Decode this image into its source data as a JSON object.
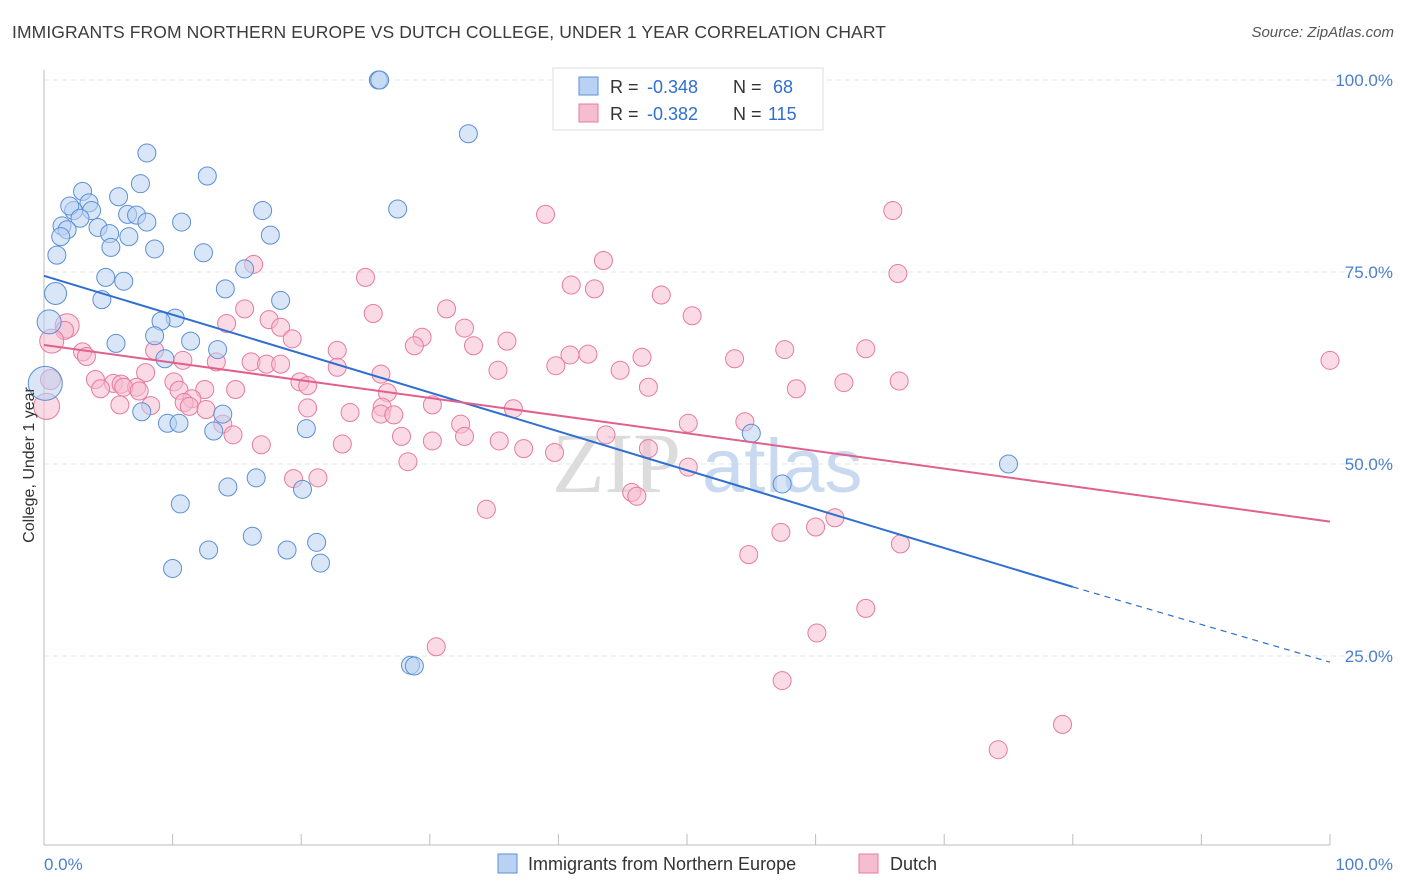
{
  "title": "IMMIGRANTS FROM NORTHERN EUROPE VS DUTCH COLLEGE, UNDER 1 YEAR CORRELATION CHART",
  "source": "Source: ZipAtlas.com",
  "watermark": {
    "zip": "ZIP",
    "atlas": "atlas"
  },
  "colors": {
    "blue": "#5b8fd6",
    "blue_fill": "#b9d1f2",
    "blue_line": "#2f6fd0",
    "pink": "#e87aa0",
    "pink_fill": "#f6bcd0",
    "pink_line": "#e0608e",
    "axis_label": "#4a7fce",
    "grid": "#e6e6e6"
  },
  "legend_top": {
    "blue": {
      "r_label": "R =",
      "r_value": "-0.348",
      "n_label": "N =",
      "n_value": "68"
    },
    "pink": {
      "r_label": "R =",
      "r_value": "-0.382",
      "n_label": "N =",
      "n_value": "115"
    }
  },
  "chart_data": {
    "type": "scatter",
    "title": "IMMIGRANTS FROM NORTHERN EUROPE VS DUTCH COLLEGE, UNDER 1 YEAR CORRELATION CHART",
    "xlabel": "",
    "ylabel": "College, Under 1 year",
    "xlim": [
      0,
      100
    ],
    "ylim": [
      3,
      105
    ],
    "x_tick_labels": [
      "0.0%",
      "100.0%"
    ],
    "y_ticks": [
      25,
      50,
      75,
      100
    ],
    "y_tick_labels": [
      "25.0%",
      "50.0%",
      "75.0%",
      "100.0%"
    ],
    "grid": true,
    "legend_position": "top-center",
    "series": [
      {
        "name": "Immigrants from Northern Europe",
        "color": "#5b8fd6",
        "trend": {
          "x0": 0,
          "y0": 74.5,
          "x1": 80,
          "y1": 34,
          "dashed_to_x": 100,
          "dashed_to_y": 24.2
        },
        "points": [
          {
            "x": 26,
            "y": 100,
            "s": 9
          },
          {
            "x": 26.1,
            "y": 100,
            "s": 9
          },
          {
            "x": 33,
            "y": 93
          },
          {
            "x": 8,
            "y": 90.5
          },
          {
            "x": 12.7,
            "y": 87.5
          },
          {
            "x": 7.5,
            "y": 86.5
          },
          {
            "x": 3,
            "y": 85.5
          },
          {
            "x": 5.8,
            "y": 84.8
          },
          {
            "x": 3.5,
            "y": 84
          },
          {
            "x": 2.3,
            "y": 83
          },
          {
            "x": 2,
            "y": 83.6
          },
          {
            "x": 3.7,
            "y": 83
          },
          {
            "x": 6.5,
            "y": 82.5
          },
          {
            "x": 17,
            "y": 83
          },
          {
            "x": 27.5,
            "y": 83.2
          },
          {
            "x": 7.2,
            "y": 82.4
          },
          {
            "x": 2.8,
            "y": 82
          },
          {
            "x": 1.4,
            "y": 81
          },
          {
            "x": 8,
            "y": 81.5
          },
          {
            "x": 10.7,
            "y": 81.5
          },
          {
            "x": 1.8,
            "y": 80.5
          },
          {
            "x": 4.2,
            "y": 80.8
          },
          {
            "x": 5.1,
            "y": 80
          },
          {
            "x": 1.3,
            "y": 79.6
          },
          {
            "x": 6.6,
            "y": 79.6
          },
          {
            "x": 17.6,
            "y": 79.8
          },
          {
            "x": 5.2,
            "y": 78.2
          },
          {
            "x": 8.6,
            "y": 78
          },
          {
            "x": 12.4,
            "y": 77.5
          },
          {
            "x": 1,
            "y": 77.2
          },
          {
            "x": 15.6,
            "y": 75.4
          },
          {
            "x": 4.8,
            "y": 74.3
          },
          {
            "x": 6.2,
            "y": 73.8
          },
          {
            "x": 14.1,
            "y": 72.8
          },
          {
            "x": 0.9,
            "y": 72.2,
            "s": 11
          },
          {
            "x": 4.5,
            "y": 71.4
          },
          {
            "x": 18.4,
            "y": 71.3
          },
          {
            "x": 10.2,
            "y": 69
          },
          {
            "x": 9.1,
            "y": 68.6
          },
          {
            "x": 0.4,
            "y": 68.5,
            "s": 12
          },
          {
            "x": 8.6,
            "y": 66.7
          },
          {
            "x": 11.4,
            "y": 66
          },
          {
            "x": 5.6,
            "y": 65.7
          },
          {
            "x": 13.5,
            "y": 64.9
          },
          {
            "x": 9.4,
            "y": 63.7
          },
          {
            "x": 0.1,
            "y": 60.5,
            "s": 17
          },
          {
            "x": 7.6,
            "y": 56.8
          },
          {
            "x": 13.9,
            "y": 56.5
          },
          {
            "x": 9.6,
            "y": 55.3
          },
          {
            "x": 10.5,
            "y": 55.3
          },
          {
            "x": 13.2,
            "y": 54.3
          },
          {
            "x": 20.4,
            "y": 54.6
          },
          {
            "x": 55,
            "y": 54
          },
          {
            "x": 75,
            "y": 50
          },
          {
            "x": 16.5,
            "y": 48.2
          },
          {
            "x": 57.4,
            "y": 47.4
          },
          {
            "x": 14.3,
            "y": 47
          },
          {
            "x": 20.1,
            "y": 46.7
          },
          {
            "x": 10.6,
            "y": 44.8
          },
          {
            "x": 16.2,
            "y": 40.6
          },
          {
            "x": 21.2,
            "y": 39.8
          },
          {
            "x": 12.8,
            "y": 38.8
          },
          {
            "x": 18.9,
            "y": 38.8
          },
          {
            "x": 21.5,
            "y": 37.1
          },
          {
            "x": 10,
            "y": 36.4
          },
          {
            "x": 28.5,
            "y": 23.8
          },
          {
            "x": 28.8,
            "y": 23.7
          }
        ]
      },
      {
        "name": "Dutch",
        "color": "#e87aa0",
        "trend": {
          "x0": 0,
          "y0": 65.5,
          "x1": 100,
          "y1": 42.5
        },
        "points": [
          {
            "x": 39,
            "y": 82.5
          },
          {
            "x": 66,
            "y": 83
          },
          {
            "x": 16.3,
            "y": 76
          },
          {
            "x": 43.5,
            "y": 76.5
          },
          {
            "x": 66.4,
            "y": 74.8
          },
          {
            "x": 25,
            "y": 74.3
          },
          {
            "x": 41,
            "y": 73.3
          },
          {
            "x": 42.8,
            "y": 72.8
          },
          {
            "x": 48,
            "y": 72
          },
          {
            "x": 15.6,
            "y": 70.2
          },
          {
            "x": 31.3,
            "y": 70.2
          },
          {
            "x": 25.6,
            "y": 69.6
          },
          {
            "x": 50.4,
            "y": 69.3
          },
          {
            "x": 17.5,
            "y": 68.8
          },
          {
            "x": 14.2,
            "y": 68.3
          },
          {
            "x": 1.8,
            "y": 68,
            "s": 12
          },
          {
            "x": 32.7,
            "y": 67.7
          },
          {
            "x": 18.4,
            "y": 67.8
          },
          {
            "x": 1.6,
            "y": 67.4
          },
          {
            "x": 29.4,
            "y": 66.5
          },
          {
            "x": 0.6,
            "y": 66,
            "s": 12
          },
          {
            "x": 36,
            "y": 66
          },
          {
            "x": 19.3,
            "y": 66.3
          },
          {
            "x": 28.8,
            "y": 65.4
          },
          {
            "x": 33.4,
            "y": 65.4
          },
          {
            "x": 57.6,
            "y": 64.9
          },
          {
            "x": 22.8,
            "y": 64.8
          },
          {
            "x": 3,
            "y": 64.6
          },
          {
            "x": 8.6,
            "y": 64.8
          },
          {
            "x": 42.3,
            "y": 64.3
          },
          {
            "x": 40.9,
            "y": 64.2
          },
          {
            "x": 46.5,
            "y": 63.9
          },
          {
            "x": 3.3,
            "y": 64
          },
          {
            "x": 53.7,
            "y": 63.7
          },
          {
            "x": 10.8,
            "y": 63.5
          },
          {
            "x": 16.1,
            "y": 63.3
          },
          {
            "x": 22.8,
            "y": 62.6
          },
          {
            "x": 17.3,
            "y": 63
          },
          {
            "x": 39.8,
            "y": 62.8
          },
          {
            "x": 18.4,
            "y": 63
          },
          {
            "x": 13.4,
            "y": 63.3
          },
          {
            "x": 100,
            "y": 63.5
          },
          {
            "x": 35.3,
            "y": 62.2
          },
          {
            "x": 44.8,
            "y": 62.2
          },
          {
            "x": 26.2,
            "y": 61.7
          },
          {
            "x": 7.9,
            "y": 61.9
          },
          {
            "x": 4,
            "y": 61
          },
          {
            "x": 0.5,
            "y": 61,
            "s": 10
          },
          {
            "x": 5.4,
            "y": 60.5
          },
          {
            "x": 62.2,
            "y": 60.6
          },
          {
            "x": 19.9,
            "y": 60.7
          },
          {
            "x": 10.1,
            "y": 60.7
          },
          {
            "x": 20.5,
            "y": 60.2
          },
          {
            "x": 6,
            "y": 60.4
          },
          {
            "x": 7.2,
            "y": 60
          },
          {
            "x": 47,
            "y": 60
          },
          {
            "x": 6.2,
            "y": 60
          },
          {
            "x": 4.4,
            "y": 59.8
          },
          {
            "x": 7.4,
            "y": 59.5
          },
          {
            "x": 10.5,
            "y": 59.6
          },
          {
            "x": 12.5,
            "y": 59.7
          },
          {
            "x": 14.9,
            "y": 59.7
          },
          {
            "x": 58.5,
            "y": 59.8
          },
          {
            "x": 26.7,
            "y": 59.3
          },
          {
            "x": 11.5,
            "y": 58.5
          },
          {
            "x": 10.9,
            "y": 58
          },
          {
            "x": 0.2,
            "y": 57.5,
            "s": 13
          },
          {
            "x": 5.9,
            "y": 57.7
          },
          {
            "x": 11.3,
            "y": 57.5
          },
          {
            "x": 30.2,
            "y": 57.7
          },
          {
            "x": 8.3,
            "y": 57.6
          },
          {
            "x": 26.3,
            "y": 57.4
          },
          {
            "x": 20.5,
            "y": 57.3
          },
          {
            "x": 36.5,
            "y": 57.2
          },
          {
            "x": 12.6,
            "y": 57.1
          },
          {
            "x": 23.8,
            "y": 56.7
          },
          {
            "x": 26.2,
            "y": 56.5
          },
          {
            "x": 27.2,
            "y": 56.4
          },
          {
            "x": 54.5,
            "y": 55.5
          },
          {
            "x": 13.9,
            "y": 55.2
          },
          {
            "x": 32.4,
            "y": 55.2
          },
          {
            "x": 50.1,
            "y": 55.3
          },
          {
            "x": 43.7,
            "y": 53.8
          },
          {
            "x": 14.7,
            "y": 53.8
          },
          {
            "x": 27.8,
            "y": 53.6
          },
          {
            "x": 32.7,
            "y": 53.6
          },
          {
            "x": 30.2,
            "y": 53
          },
          {
            "x": 35.4,
            "y": 53
          },
          {
            "x": 16.9,
            "y": 52.5
          },
          {
            "x": 23.2,
            "y": 52.6
          },
          {
            "x": 37.3,
            "y": 52
          },
          {
            "x": 47,
            "y": 52
          },
          {
            "x": 39.7,
            "y": 51.5
          },
          {
            "x": 28.3,
            "y": 50.3
          },
          {
            "x": 50.1,
            "y": 49.6
          },
          {
            "x": 19.4,
            "y": 48.1
          },
          {
            "x": 21.3,
            "y": 48.2
          },
          {
            "x": 45.7,
            "y": 46.3
          },
          {
            "x": 46.1,
            "y": 45.8
          },
          {
            "x": 34.4,
            "y": 44.1
          },
          {
            "x": 61.5,
            "y": 43
          },
          {
            "x": 60,
            "y": 41.8
          },
          {
            "x": 57.3,
            "y": 41.1
          },
          {
            "x": 66.6,
            "y": 39.6
          },
          {
            "x": 54.8,
            "y": 38.2
          },
          {
            "x": 63.9,
            "y": 31.2
          },
          {
            "x": 60.1,
            "y": 28
          },
          {
            "x": 30.5,
            "y": 26.2
          },
          {
            "x": 57.4,
            "y": 21.8
          },
          {
            "x": 79.2,
            "y": 16.1
          },
          {
            "x": 74.2,
            "y": 12.8
          },
          {
            "x": 63.9,
            "y": 65
          },
          {
            "x": 66.5,
            "y": 60.8
          }
        ]
      }
    ]
  }
}
